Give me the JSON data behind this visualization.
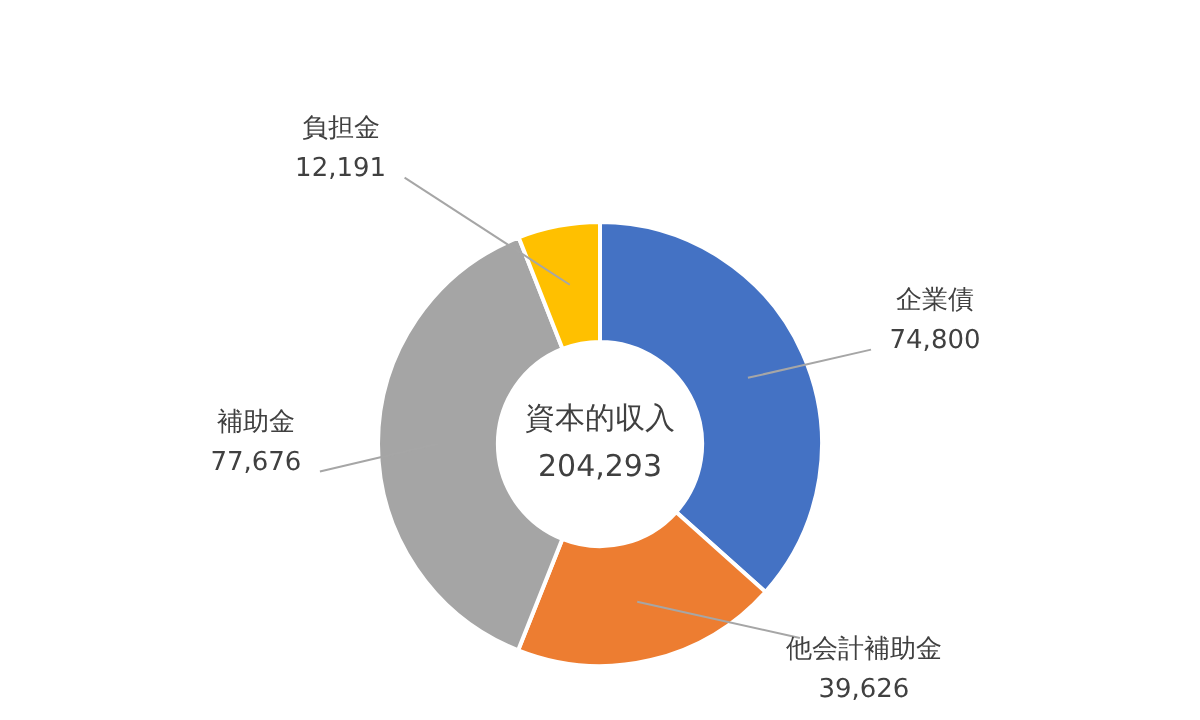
{
  "chart_data": {
    "type": "donut",
    "categories": [
      "企業債",
      "他会計補助金",
      "補助金",
      "負担金"
    ],
    "values": [
      74800,
      39626,
      77676,
      12191
    ],
    "colors": [
      "#4472c4",
      "#ed7d31",
      "#a5a5a5",
      "#ffc000"
    ],
    "value_labels": [
      "74,800",
      "39,626",
      "77,676",
      "12,191"
    ],
    "legend": false,
    "annotations": [
      "資本的収入",
      "204,293"
    ]
  }
}
